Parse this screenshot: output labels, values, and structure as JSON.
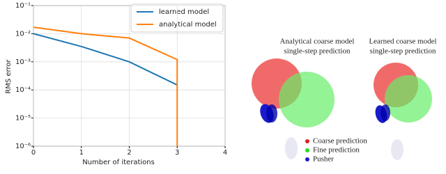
{
  "chart_data": {
    "type": "line",
    "xlabel": "Number of iterations",
    "ylabel": "RMS error",
    "yscale": "log",
    "grid": true,
    "legend": "upper right",
    "xlim": [
      0,
      4
    ],
    "xticks": [
      0,
      1,
      2,
      3,
      4
    ],
    "ylim": [
      1e-06,
      0.1
    ],
    "yticks": [
      {
        "value": 1e-06,
        "label": "10⁻⁶"
      },
      {
        "value": 1e-05,
        "label": "10⁻⁵"
      },
      {
        "value": 0.0001,
        "label": "10⁻⁴"
      },
      {
        "value": 0.001,
        "label": "10⁻³"
      },
      {
        "value": 0.01,
        "label": "10⁻²"
      },
      {
        "value": 0.1,
        "label": "10⁻¹"
      }
    ],
    "series": [
      {
        "name": "learned model",
        "color": "#1f77b4",
        "x": [
          0,
          1,
          2,
          3
        ],
        "values": [
          0.01,
          0.0035,
          0.001,
          0.00015
        ]
      },
      {
        "name": "analytical model",
        "color": "#ff7f0e",
        "x": [
          0,
          1,
          2,
          3,
          3
        ],
        "values": [
          0.017,
          0.01,
          0.007,
          0.0012,
          1e-06
        ]
      }
    ]
  },
  "illustration": {
    "panels": [
      [
        "Analytical coarse model",
        "single-step prediction"
      ],
      [
        "Learned coarse model",
        "single-step prediction"
      ]
    ],
    "legend": [
      "Coarse prediction",
      "Fine prediction",
      "Pusher"
    ]
  }
}
